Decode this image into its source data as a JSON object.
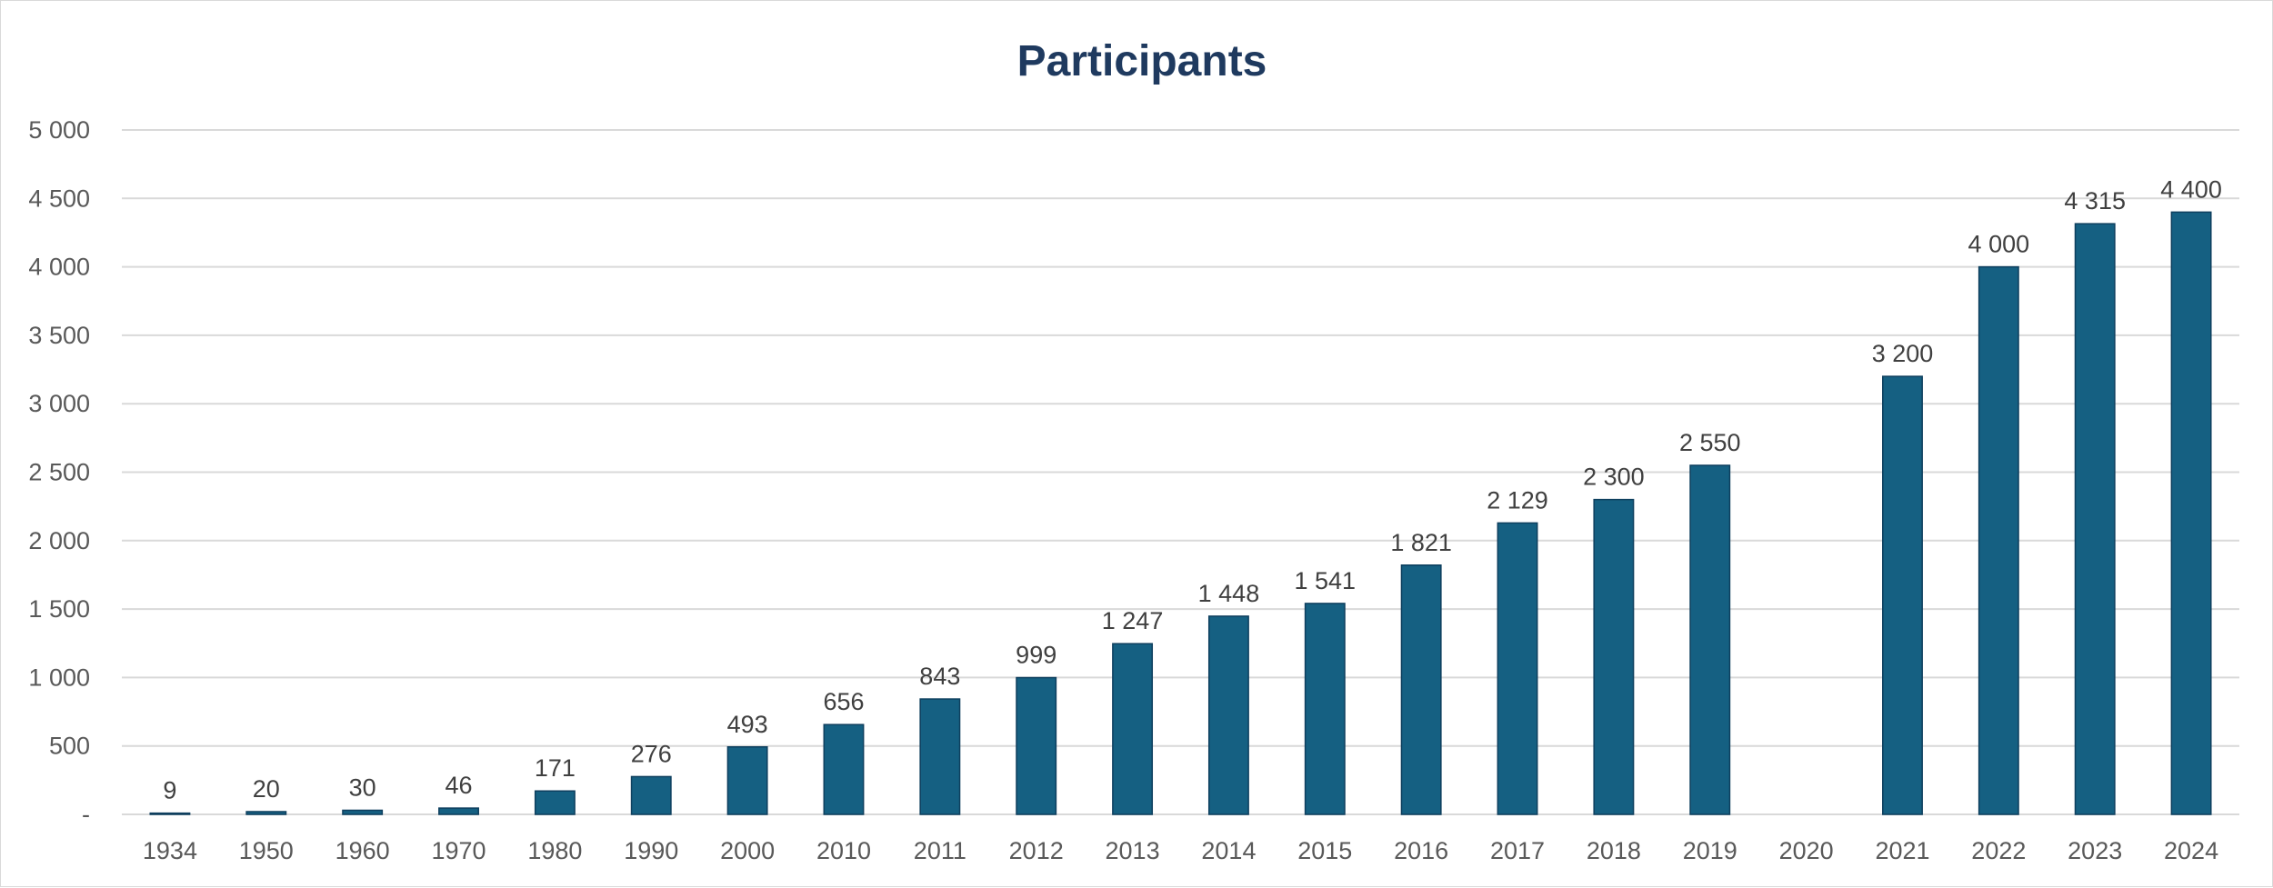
{
  "chart_data": {
    "type": "bar",
    "title": "Participants",
    "xlabel": "",
    "ylabel": "",
    "categories": [
      "1934",
      "1950",
      "1960",
      "1970",
      "1980",
      "1990",
      "2000",
      "2010",
      "2011",
      "2012",
      "2013",
      "2014",
      "2015",
      "2016",
      "2017",
      "2018",
      "2019",
      "2020",
      "2021",
      "2022",
      "2023",
      "2024"
    ],
    "values": [
      9,
      20,
      30,
      46,
      171,
      276,
      493,
      656,
      843,
      999,
      1247,
      1448,
      1541,
      1821,
      2129,
      2300,
      2550,
      null,
      3200,
      4000,
      4315,
      4400
    ],
    "data_labels": [
      "9",
      "20",
      "30",
      "46",
      "171",
      "276",
      "493",
      "656",
      "843",
      "999",
      "1 247",
      "1 448",
      "1 541",
      "1 821",
      "2 129",
      "2 300",
      "2 550",
      "",
      "3 200",
      "4 000",
      "4 315",
      "4 400"
    ],
    "ylim": [
      0,
      5000
    ],
    "yticks": [
      0,
      500,
      1000,
      1500,
      2000,
      2500,
      3000,
      3500,
      4000,
      4500,
      5000
    ],
    "ytick_labels": [
      "-",
      "500",
      "1 000",
      "1 500",
      "2 000",
      "2 500",
      "3 000",
      "3 500",
      "4 000",
      "4 500",
      "5 000"
    ],
    "grid": true,
    "legend": "none",
    "bar_color": "#156082"
  }
}
